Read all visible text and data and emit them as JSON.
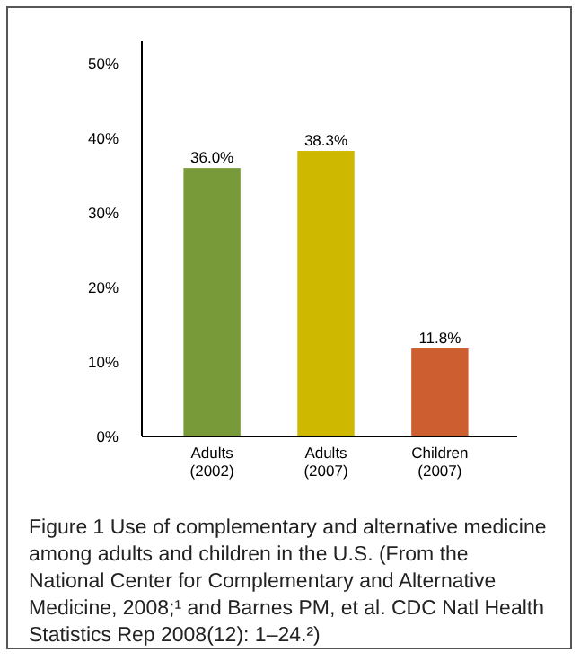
{
  "chart_data": {
    "type": "bar",
    "categories": [
      "Adults (2002)",
      "Adults (2007)",
      "Children (2007)"
    ],
    "values": [
      36.0,
      38.3,
      11.8
    ],
    "colors": [
      "#789a38",
      "#cfb900",
      "#cd5e2f"
    ],
    "value_labels": [
      "36.0%",
      "38.3%",
      "11.8%"
    ],
    "ylim": [
      0,
      53
    ],
    "yticks": [
      {
        "value": 0,
        "label": "0%"
      },
      {
        "value": 10,
        "label": "10%"
      },
      {
        "value": 20,
        "label": "20%"
      },
      {
        "value": 30,
        "label": "30%"
      },
      {
        "value": 40,
        "label": "40%"
      },
      {
        "value": 50,
        "label": "50%"
      }
    ],
    "grid": false,
    "annotations": [
      "Figure 1  Use of complementary and alternative medicine among adults and children in the U.S. (From the National Center for Complementary and Alternative Medicine, 2008;¹ and Barnes PM, et al. CDC Natl Health Statistics Rep 2008(12): 1–24.²)"
    ]
  }
}
